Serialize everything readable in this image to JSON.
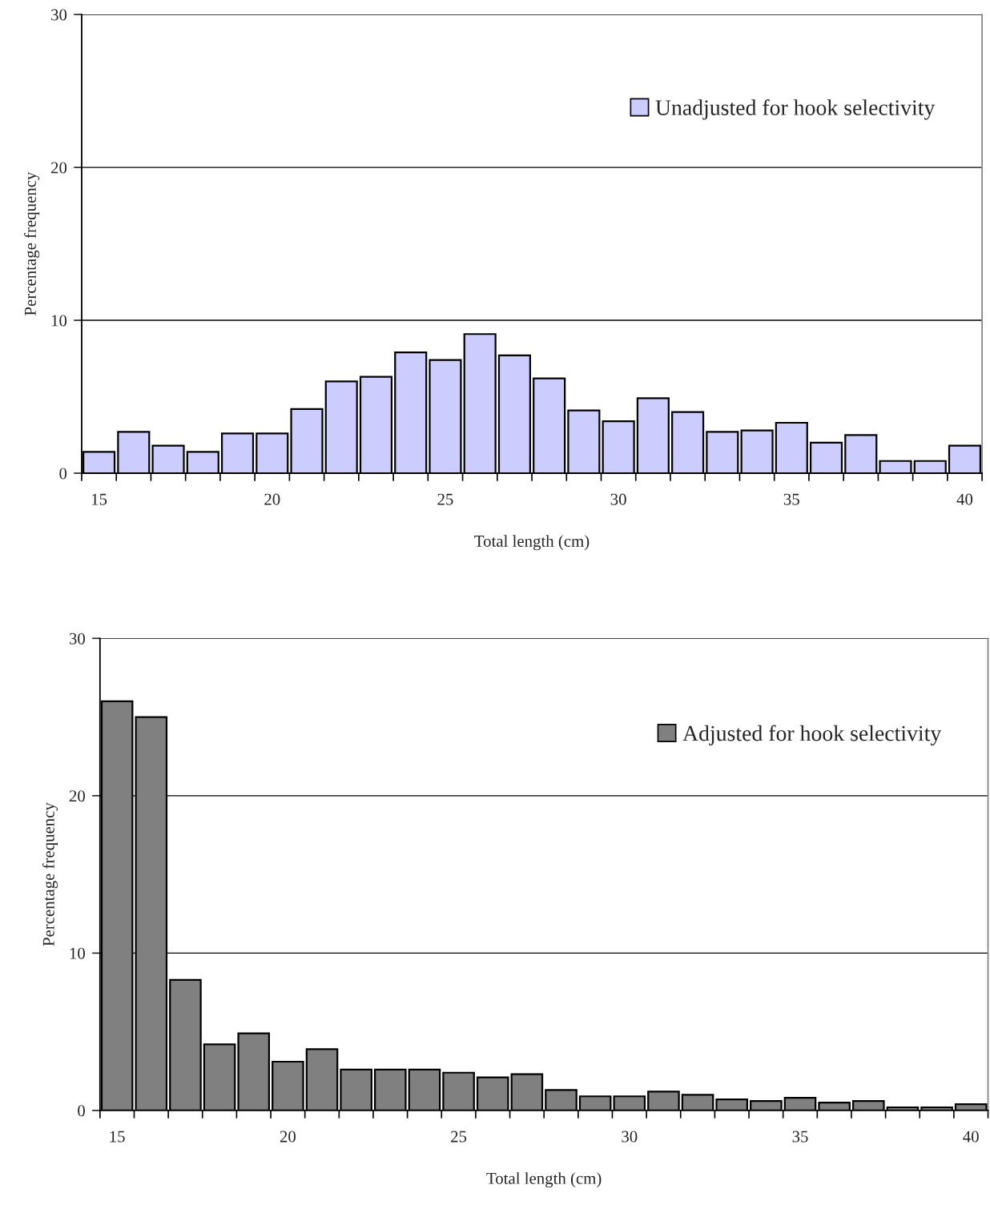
{
  "chart_data": [
    {
      "type": "bar",
      "categories": [
        "15",
        null,
        null,
        null,
        null,
        "20",
        null,
        null,
        null,
        null,
        "25",
        null,
        null,
        null,
        null,
        "30",
        null,
        null,
        null,
        null,
        "35",
        null,
        null,
        null,
        null,
        "40"
      ],
      "series": [
        {
          "name": "Unadjusted for hook selectivity",
          "color": "#ccccff",
          "values": [
            1.4,
            2.7,
            1.8,
            1.4,
            2.6,
            2.6,
            4.2,
            6.0,
            6.3,
            7.9,
            7.4,
            9.1,
            7.7,
            6.2,
            4.1,
            3.4,
            4.9,
            4.0,
            2.7,
            2.8,
            3.3,
            2.0,
            2.5,
            0.8,
            0.8,
            1.8
          ]
        }
      ],
      "xlabel": "Total length (cm)",
      "ylabel": "Percentage frequency",
      "ylim": [
        0,
        30
      ],
      "yticks": [
        0,
        10,
        20,
        30
      ],
      "grid": "y",
      "legend": "top right"
    },
    {
      "type": "bar",
      "categories": [
        "15",
        null,
        null,
        null,
        null,
        "20",
        null,
        null,
        null,
        null,
        "25",
        null,
        null,
        null,
        null,
        "30",
        null,
        null,
        null,
        null,
        "35",
        null,
        null,
        null,
        null,
        "40"
      ],
      "series": [
        {
          "name": "Adjusted for hook selectivity",
          "color": "#808080",
          "values": [
            26.0,
            25.0,
            8.3,
            4.2,
            4.9,
            3.1,
            3.9,
            2.6,
            2.6,
            2.6,
            2.4,
            2.1,
            2.3,
            1.3,
            0.9,
            0.9,
            1.2,
            1.0,
            0.7,
            0.6,
            0.8,
            0.5,
            0.6,
            0.2,
            0.2,
            0.4
          ]
        }
      ],
      "xlabel": "Total length (cm)",
      "ylabel": "Percentage frequency",
      "ylim": [
        0,
        30
      ],
      "yticks": [
        0,
        10,
        20,
        30
      ],
      "grid": "y",
      "legend": "top right"
    }
  ]
}
